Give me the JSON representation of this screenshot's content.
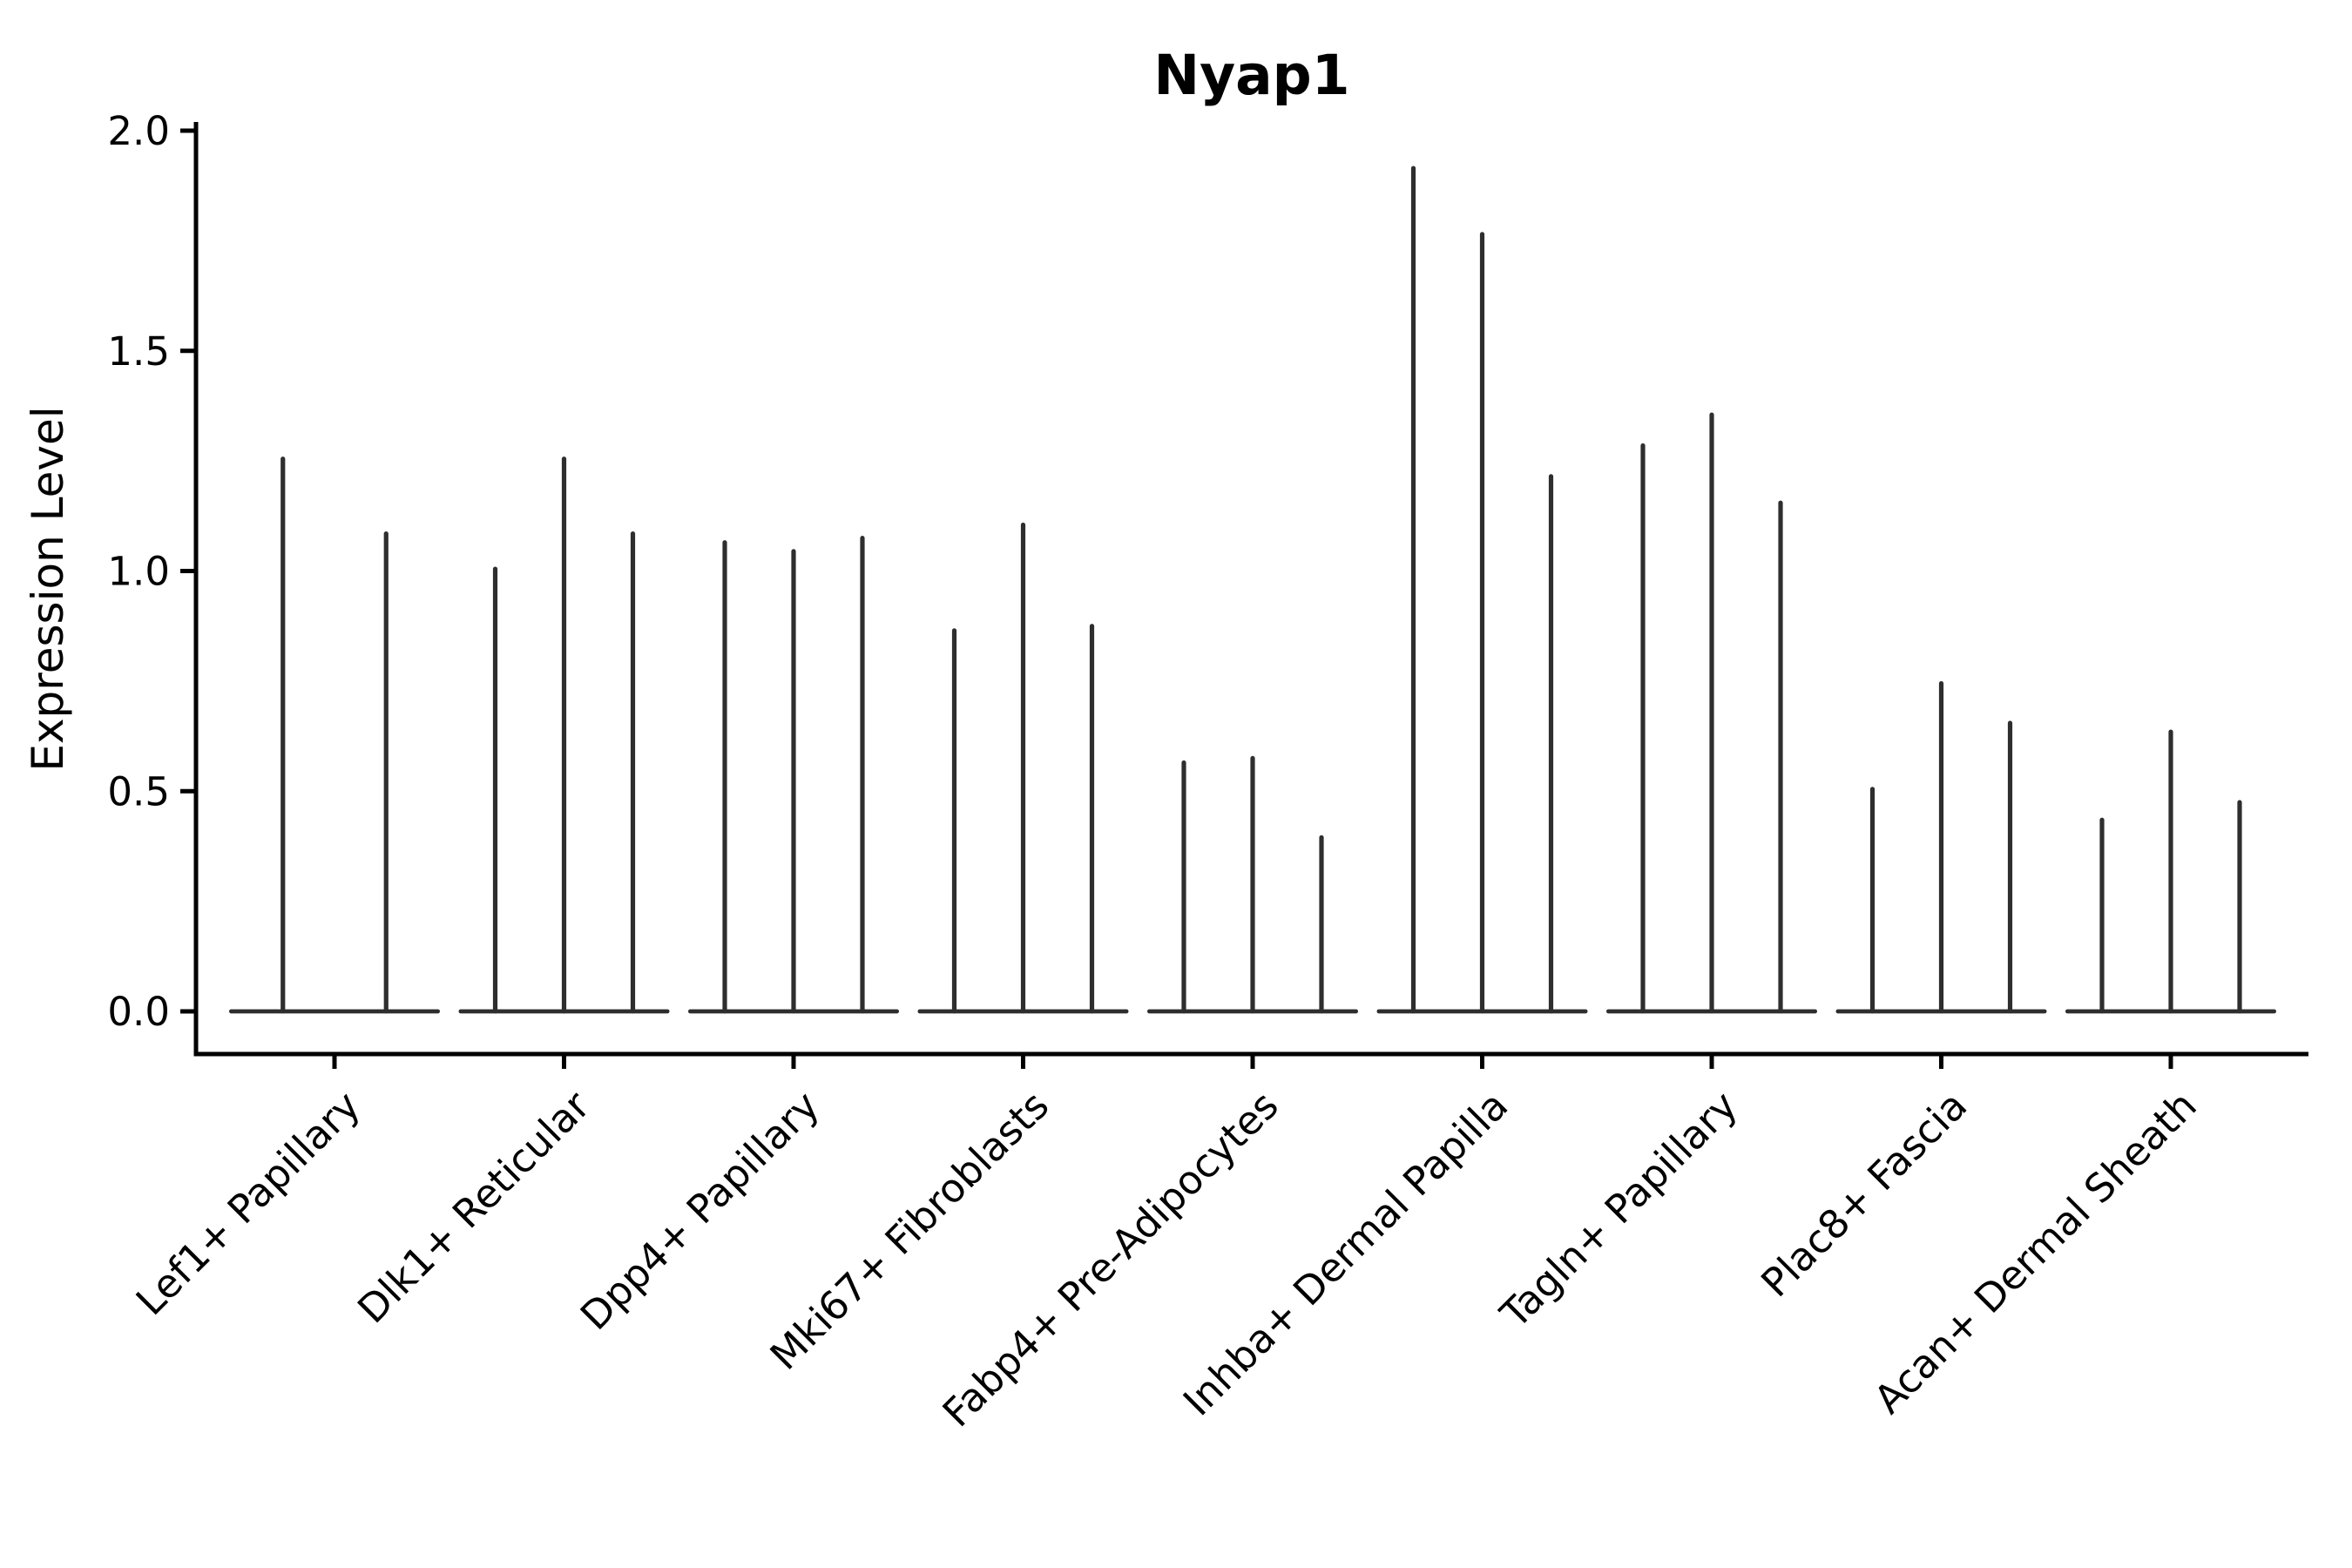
{
  "figure": {
    "background_color": "#ffffff",
    "axis_color": "#000000",
    "violin_color": "#2e2e2e"
  },
  "chart_data": {
    "type": "violin",
    "title": "Nyap1",
    "ylabel": "Expression Level",
    "xlabel": "",
    "legend_position": "none",
    "grid": false,
    "ylim": [
      0,
      2.02
    ],
    "y_ticks": [
      {
        "value": 0.0,
        "label": "0.0"
      },
      {
        "value": 0.5,
        "label": "0.5"
      },
      {
        "value": 1.0,
        "label": "1.0"
      },
      {
        "value": 1.5,
        "label": "1.5"
      },
      {
        "value": 2.0,
        "label": "2.0"
      }
    ],
    "x_tick_rotation_degrees": 45,
    "groups": [
      {
        "category": "Lef1+ Papillary",
        "violin_maxima": [
          1.26,
          1.09
        ]
      },
      {
        "category": "Dlk1+ Reticular",
        "violin_maxima": [
          1.01,
          1.26,
          1.09
        ]
      },
      {
        "category": "Dpp4+ Papillary",
        "violin_maxima": [
          1.07,
          1.05,
          1.08
        ]
      },
      {
        "category": "Mki67+ Fibroblasts",
        "violin_maxima": [
          0.87,
          1.11,
          0.88
        ]
      },
      {
        "category": "Fabp4+ Pre-Adipocytes",
        "violin_maxima": [
          0.57,
          0.58,
          0.4
        ]
      },
      {
        "category": "Inhba+ Dermal Papilla",
        "violin_maxima": [
          1.92,
          1.77,
          1.22
        ]
      },
      {
        "category": "Tagln+ Papillary",
        "violin_maxima": [
          1.29,
          1.36,
          1.16
        ]
      },
      {
        "category": "Plac8+ Fascia",
        "violin_maxima": [
          0.51,
          0.75,
          0.66
        ]
      },
      {
        "category": "Acan+ Dermal Sheath",
        "violin_maxima": [
          0.44,
          0.64,
          0.48
        ]
      }
    ],
    "description": "Violin plot of Nyap1 expression per fibroblast subtype; expression concentrated at 0 so violins collapse to thin spikes reaching each group's maximum expression."
  }
}
